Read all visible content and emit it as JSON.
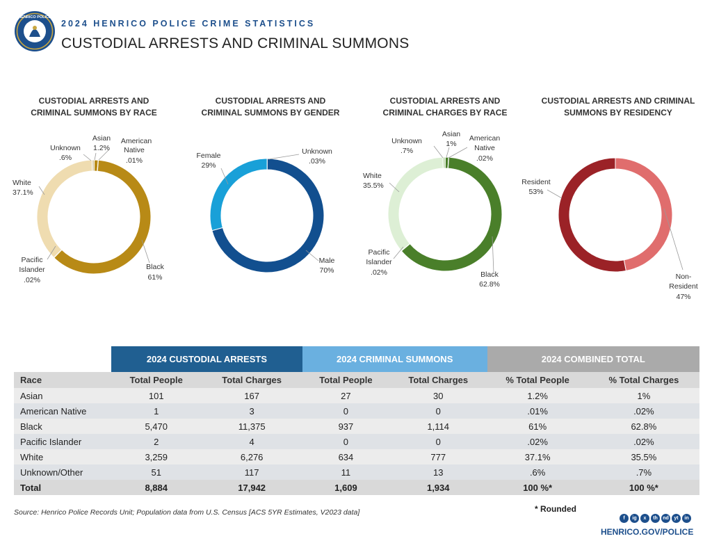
{
  "header": {
    "logo_text": "HENRICO POLICE",
    "kicker": "2024 HENRICO POLICE CRIME STATISTICS",
    "title": "CUSTODIAL ARRESTS AND CRIMINAL SUMMONS"
  },
  "chart_data": [
    {
      "type": "pie",
      "title": [
        "CUSTODIAL ARRESTS AND",
        "CRIMINAL SUMMONS BY RACE"
      ],
      "slices": [
        {
          "label": "Asian",
          "value": 1.2,
          "display": "1.2%",
          "color": "#b88a16"
        },
        {
          "label": "American Native",
          "value": 0.01,
          "display": ".01%",
          "color": "#b88a16"
        },
        {
          "label": "Black",
          "value": 61,
          "display": "61%",
          "color": "#b88a16"
        },
        {
          "label": "Pacific Islander",
          "value": 0.02,
          "display": ".02%",
          "color": "#d4b15a"
        },
        {
          "label": "White",
          "value": 37.1,
          "display": "37.1%",
          "color": "#efdcb0"
        },
        {
          "label": "Unknown",
          "value": 0.6,
          "display": ".6%",
          "color": "#d7c8a0"
        }
      ]
    },
    {
      "type": "pie",
      "title": [
        "CUSTODIAL ARRESTS AND",
        "CRIMINAL SUMMONS BY GENDER"
      ],
      "slices": [
        {
          "label": "Unknown",
          "value": 0.03,
          "display": ".03%",
          "color": "#6ab0e0"
        },
        {
          "label": "Male",
          "value": 70,
          "display": "70%",
          "color": "#124f8f"
        },
        {
          "label": "Female",
          "value": 29,
          "display": "29%",
          "color": "#19a0d8"
        }
      ]
    },
    {
      "type": "pie",
      "title": [
        "CUSTODIAL ARRESTS AND",
        "CRIMINAL  CHARGES BY RACE"
      ],
      "slices": [
        {
          "label": "Asian",
          "value": 1,
          "display": "1%",
          "color": "#4a7f2a"
        },
        {
          "label": "American Native",
          "value": 0.02,
          "display": ".02%",
          "color": "#4a7f2a"
        },
        {
          "label": "Black",
          "value": 62.8,
          "display": "62.8%",
          "color": "#4a7f2a"
        },
        {
          "label": "Pacific Islander",
          "value": 0.02,
          "display": ".02%",
          "color": "#8fbf6a"
        },
        {
          "label": "White",
          "value": 35.5,
          "display": "35.5%",
          "color": "#ddefd5"
        },
        {
          "label": "Unknown",
          "value": 0.7,
          "display": ".7%",
          "color": "#c4ddb5"
        }
      ]
    },
    {
      "type": "pie",
      "title": [
        "CUSTODIAL ARRESTS AND CRIMINAL",
        "SUMMONS BY RESIDENCY"
      ],
      "slices": [
        {
          "label": "Non-Resident",
          "value": 47,
          "display": "47%",
          "color": "#e06d6d"
        },
        {
          "label": "Resident",
          "value": 53,
          "display": "53%",
          "color": "#9b2227"
        }
      ]
    }
  ],
  "table": {
    "groups": [
      "2024 CUSTODIAL ARRESTS",
      "2024 CRIMINAL SUMMONS",
      "2024 COMBINED TOTAL"
    ],
    "columns": [
      "Race",
      "Total People",
      "Total Charges",
      "Total People",
      "Total Charges",
      "% Total People",
      "% Total Charges"
    ],
    "rows": [
      [
        "Asian",
        "101",
        "167",
        "27",
        "30",
        "1.2%",
        "1%"
      ],
      [
        "American Native",
        "1",
        "3",
        "0",
        "0",
        ".01%",
        ".02%"
      ],
      [
        "Black",
        "5,470",
        "11,375",
        "937",
        "1,114",
        "61%",
        "62.8%"
      ],
      [
        "Pacific Islander",
        "2",
        "4",
        "0",
        "0",
        ".02%",
        ".02%"
      ],
      [
        "White",
        "3,259",
        "6,276",
        "634",
        "777",
        "37.1%",
        "35.5%"
      ],
      [
        "Unknown/Other",
        "51",
        "117",
        "11",
        "13",
        ".6%",
        ".7%"
      ],
      [
        "Total",
        "8,884",
        "17,942",
        "1,609",
        "1,934",
        "100 %*",
        "100 %*"
      ]
    ]
  },
  "footer": {
    "source": "Source:  Henrico Police Records Unit; Population data from U.S. Census [ACS 5YR Estimates, V2023 data]",
    "note": "* Rounded",
    "social_icons": [
      "f",
      "ig",
      "x",
      "th",
      "nd",
      "yt",
      "in"
    ],
    "website": "HENRICO.GOV/POLICE"
  }
}
